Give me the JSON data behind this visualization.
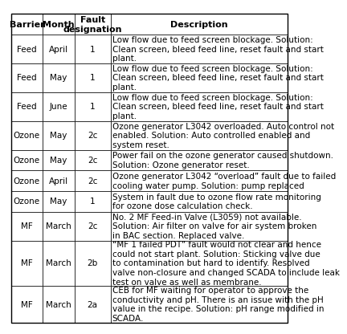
{
  "col_headers": [
    "Barrier",
    "Month",
    "Fault\ndesignation",
    "Description"
  ],
  "rows": [
    {
      "barrier": "Feed",
      "month": "April",
      "fault": "1",
      "description": "Low flow due to feed screen blockage. Solution: Clean screen, bleed feed line, reset fault and start plant."
    },
    {
      "barrier": "Feed",
      "month": "May",
      "fault": "1",
      "description": "Low flow due to feed screen blockage. Solution: Clean screen, bleed feed line, reset fault and start plant."
    },
    {
      "barrier": "Feed",
      "month": "June",
      "fault": "1",
      "description": "Low flow due to feed screen blockage. Solution: Clean screen, bleed feed line, reset fault and start plant."
    },
    {
      "barrier": "Ozone",
      "month": "May",
      "fault": "2c",
      "description": "Ozone generator L3042 overloaded. Auto control not enabled. Solution: Auto controlled enabled and system reset."
    },
    {
      "barrier": "Ozone",
      "month": "May",
      "fault": "2c",
      "description": "Power fail on the ozone generator caused shutdown. Solution: Ozone generator reset."
    },
    {
      "barrier": "Ozone",
      "month": "April",
      "fault": "2c",
      "description": "Ozone generator L3042 “overload” fault due to failed cooling water pump. Solution: pump replaced"
    },
    {
      "barrier": "Ozone",
      "month": "May",
      "fault": "1",
      "description": "System in fault due to ozone flow rate monitoring for ozone dose calculation check."
    },
    {
      "barrier": "MF",
      "month": "March",
      "fault": "2c",
      "description": "No. 2 MF Feed-in Valve (L3059) not available. Solution: Air filter on valve for air system broken in BAC section. Replaced valve."
    },
    {
      "barrier": "MF",
      "month": "March",
      "fault": "2b",
      "description": "“MF 1 failed PDT” fault would not clear and hence could not start plant. Solution: Sticking valve due to contamination but hard to identify. Resolved valve non-closure and changed SCADA to include leak test on valve as well as membrane."
    },
    {
      "barrier": "MF",
      "month": "March",
      "fault": "2a",
      "description": "CEB for MF waiting for operator to approve the conductivity and pH. There is an issue with the pH value in the recipe. Solution: pH range modified in SCADA."
    }
  ],
  "font_size": 7.5,
  "header_font_size": 8.0,
  "bg_color": "#ffffff",
  "line_color": "#000000",
  "text_color": "#000000",
  "chars_per_line_desc": 52
}
